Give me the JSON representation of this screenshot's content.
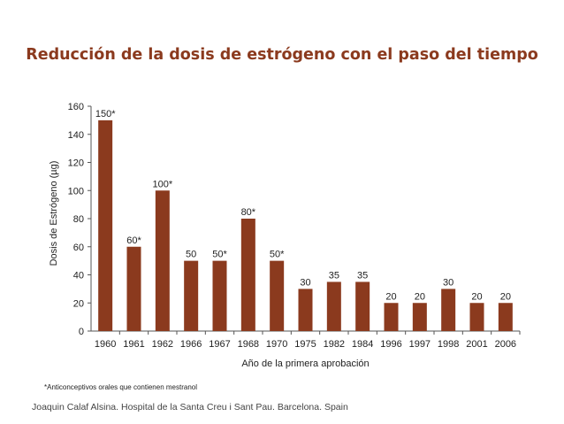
{
  "title": "Reducción de la dosis de estrógeno con el paso del tiempo",
  "colors": {
    "bar": "#8b3a1e",
    "title": "#8b3a1e",
    "axis": "#555555",
    "text": "#222222"
  },
  "chart_data": {
    "type": "bar",
    "title": "Reducción de la dosis de estrógeno con el paso del tiempo",
    "xlabel": "Año de la primera aprobación",
    "ylabel": "Dosis de Estrógeno (µg)",
    "ylim": [
      0,
      160
    ],
    "yticks": [
      0,
      20,
      40,
      60,
      80,
      100,
      120,
      140,
      160
    ],
    "grid": false,
    "categories": [
      "1960",
      "1961",
      "1962",
      "1966",
      "1967",
      "1968",
      "1970",
      "1975",
      "1982",
      "1984",
      "1996",
      "1997",
      "1998",
      "2001",
      "2006"
    ],
    "values": [
      150,
      60,
      100,
      50,
      50,
      80,
      50,
      30,
      35,
      35,
      20,
      20,
      30,
      20,
      20
    ],
    "data_labels": [
      "150*",
      "60*",
      "100*",
      "50",
      "50*",
      "80*",
      "50*",
      "30",
      "35",
      "35",
      "20",
      "20",
      "30",
      "20",
      "20"
    ]
  },
  "footnote": "*Anticonceptivos orales que contienen mestranol",
  "credit": "Joaquin Calaf Alsina.  Hospital de la Santa Creu i Sant Pau.  Barcelona. Spain"
}
